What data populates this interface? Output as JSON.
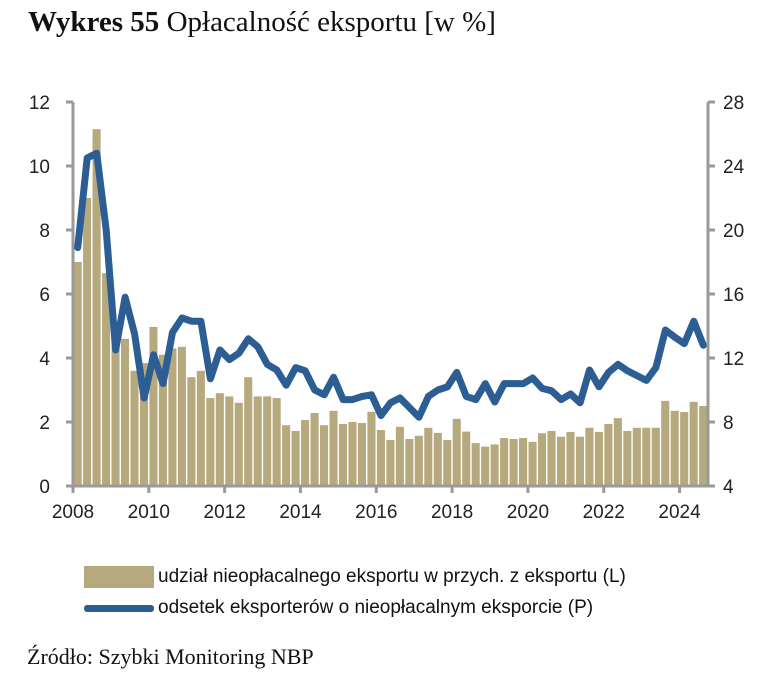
{
  "title": {
    "number": "Wykres 55",
    "text": "Opłacalność eksportu [w %]"
  },
  "source": "Źródło: Szybki Monitoring NBP",
  "colors": {
    "bars": "#b6a97e",
    "line": "#2c5d93",
    "axis": "#9a9a9a"
  },
  "chart_data": {
    "type": "bar+line",
    "x_frequency": "quarterly",
    "x_start": "2008 Q1",
    "x_end": "2024 Q3",
    "x_tick_labels": [
      "2008",
      "2010",
      "2012",
      "2014",
      "2016",
      "2018",
      "2020",
      "2022",
      "2024"
    ],
    "y_left": {
      "ylim": [
        0,
        12
      ],
      "ticks": [
        "0",
        "2",
        "4",
        "6",
        "8",
        "10",
        "12"
      ]
    },
    "y_right": {
      "ylim": [
        4,
        28
      ],
      "ticks": [
        "4",
        "8",
        "12",
        "16",
        "20",
        "24",
        "28"
      ]
    },
    "grid": false,
    "legend_placement": "bottom",
    "series": [
      {
        "name": "udział nieopłacalnego eksportu w przych. z eksportu (L)",
        "type": "bar",
        "axis": "left",
        "values": [
          7.0,
          9.0,
          11.15,
          6.65,
          4.4,
          4.6,
          3.6,
          3.84,
          4.97,
          4.1,
          4.3,
          4.35,
          3.4,
          3.6,
          2.75,
          2.9,
          2.8,
          2.6,
          3.4,
          2.8,
          2.8,
          2.75,
          1.9,
          1.72,
          2.06,
          2.28,
          1.9,
          2.35,
          1.94,
          2.0,
          1.97,
          2.32,
          1.75,
          1.44,
          1.85,
          1.47,
          1.57,
          1.82,
          1.66,
          1.44,
          2.1,
          1.7,
          1.34,
          1.23,
          1.3,
          1.5,
          1.47,
          1.5,
          1.38,
          1.65,
          1.72,
          1.54,
          1.69,
          1.54,
          1.82,
          1.69,
          1.94,
          2.12,
          1.72,
          1.82,
          1.82,
          1.82,
          2.66,
          2.35,
          2.31,
          2.63,
          2.5
        ]
      },
      {
        "name": "odsetek eksporterów o nieopłacalnym eksporcie (P)",
        "type": "line",
        "axis": "right",
        "values": [
          18.9,
          24.5,
          24.8,
          20.0,
          12.5,
          15.8,
          13.5,
          9.5,
          12.2,
          10.4,
          13.6,
          14.5,
          14.3,
          14.3,
          10.7,
          12.5,
          11.9,
          12.3,
          13.2,
          12.7,
          11.6,
          11.25,
          10.3,
          11.4,
          11.2,
          10.0,
          9.7,
          10.8,
          9.4,
          9.4,
          9.6,
          9.7,
          8.4,
          9.2,
          9.5,
          8.9,
          8.3,
          9.6,
          10.0,
          10.2,
          11.1,
          9.6,
          9.4,
          10.4,
          9.25,
          10.4,
          10.4,
          10.4,
          10.75,
          10.1,
          9.95,
          9.4,
          9.75,
          9.2,
          11.25,
          10.2,
          11.1,
          11.6,
          11.2,
          10.9,
          10.6,
          11.4,
          13.75,
          13.3,
          12.9,
          14.3,
          12.8
        ]
      }
    ]
  }
}
